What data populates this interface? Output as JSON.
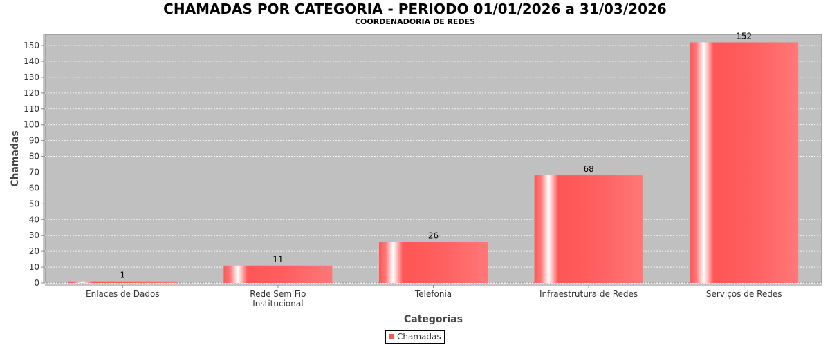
{
  "title": "CHAMADAS POR CATEGORIA - PERIODO 01/01/2026 a 31/03/2026",
  "subtitle": "COORDENADORIA DE REDES",
  "chart_data": {
    "type": "bar",
    "title": "CHAMADAS POR CATEGORIA - PERIODO 01/01/2026 a 31/03/2026",
    "subtitle": "COORDENADORIA DE REDES",
    "xlabel": "Categorias",
    "ylabel": "Chamadas",
    "categories": [
      [
        "Enlaces de Dados"
      ],
      [
        "Rede Sem Fio",
        "Institucional"
      ],
      [
        "Telefonia"
      ],
      [
        "Infraestrutura de Redes"
      ],
      [
        "Serviços de Redes"
      ]
    ],
    "series": [
      {
        "name": "Chamadas",
        "values": [
          1,
          11,
          26,
          68,
          152
        ],
        "color": "#ff5555"
      }
    ],
    "ylim": [
      0,
      157
    ],
    "yticks": [
      0,
      10,
      20,
      30,
      40,
      50,
      60,
      70,
      80,
      90,
      100,
      110,
      120,
      130,
      140,
      150
    ],
    "grid": true,
    "legend": "bottom-center",
    "plot_background": "#c0c0c0"
  }
}
